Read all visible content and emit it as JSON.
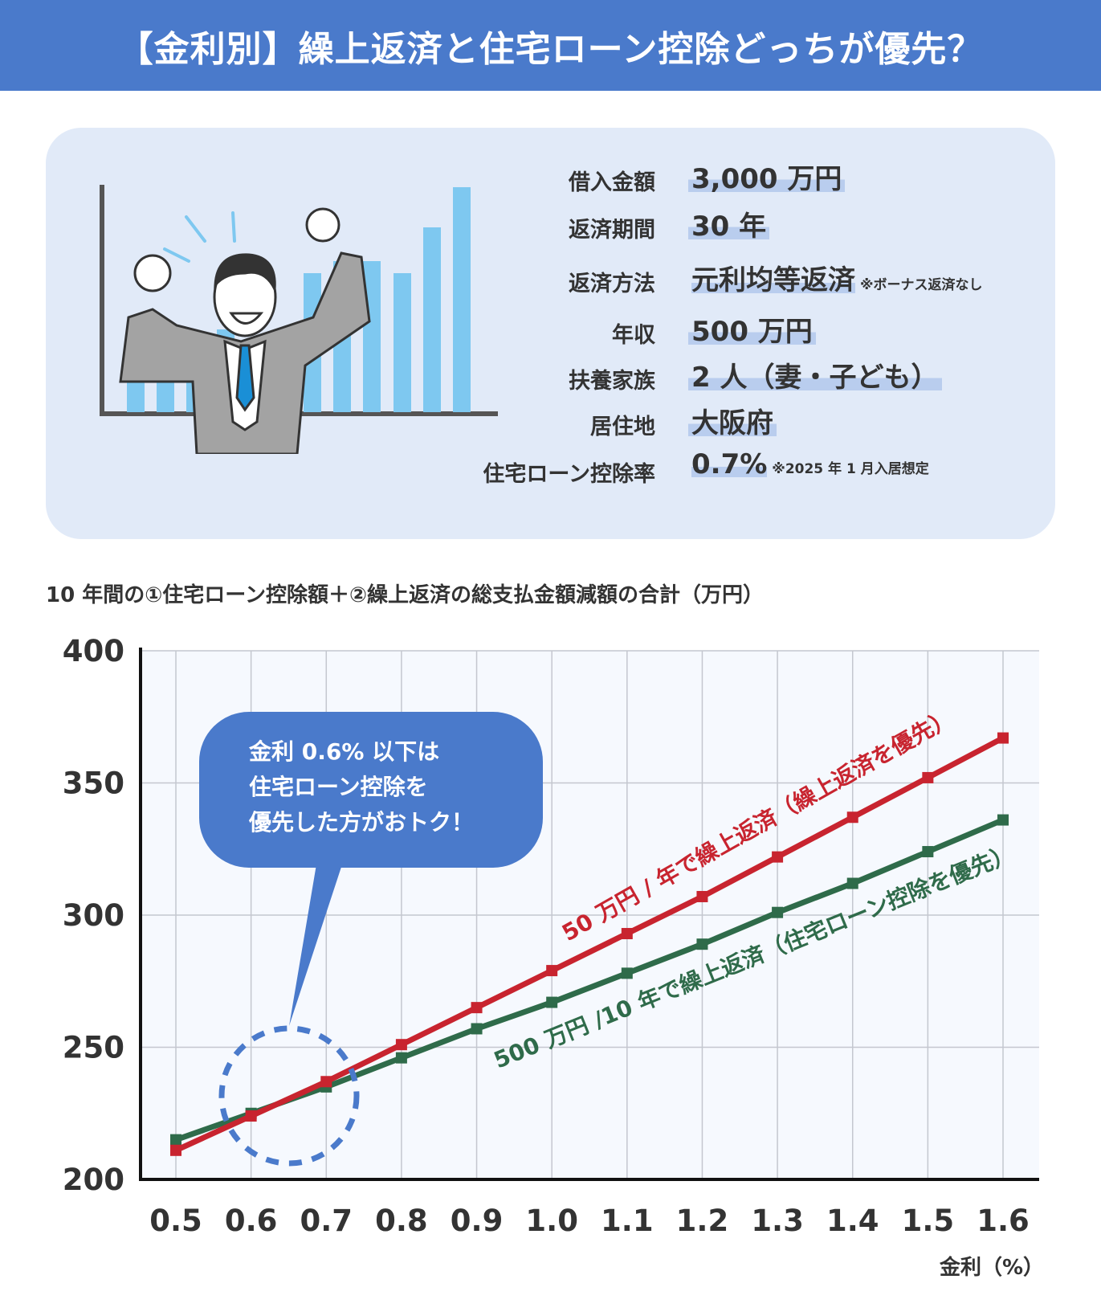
{
  "header": {
    "title": "【金利別】繰上返済と住宅ローン控除どっちが優先？"
  },
  "conditions": [
    {
      "label": "借入金額",
      "value": "3,000 万円",
      "note": ""
    },
    {
      "label": "返済期間",
      "value": "30 年",
      "note": ""
    },
    {
      "label": "返済方法",
      "value": "元利均等返済",
      "note": "※ボーナス返済なし"
    },
    {
      "label": "年収",
      "value": "500 万円",
      "note": ""
    },
    {
      "label": "扶養家族",
      "value": "2 人（妻・子ども）",
      "note": ""
    },
    {
      "label": "居住地",
      "value": "大阪府",
      "note": ""
    },
    {
      "label": "住宅ローン控除率",
      "value": "0.7%",
      "note": "※2025 年 1 月入居想定"
    }
  ],
  "colors": {
    "header": "#4a7acb",
    "card": "#e1eaf8",
    "red_series": "#c8242f",
    "green_series": "#2f6b4a",
    "callout": "#4a7acb",
    "plot_bg": "#f6f9fe"
  },
  "chart_data": {
    "type": "line",
    "title": "10 年間の①住宅ローン控除額＋②繰上返済の総支払金額減額の合計（万円）",
    "xlabel": "金利（%）",
    "ylabel": "",
    "x": [
      "0.5",
      "0.6",
      "0.7",
      "0.8",
      "0.9",
      "1.0",
      "1.1",
      "1.2",
      "1.3",
      "1.4",
      "1.5",
      "1.6"
    ],
    "ylim": [
      200,
      400
    ],
    "yticks": [
      "200",
      "250",
      "300",
      "350",
      "400"
    ],
    "grid": true,
    "series": [
      {
        "name": "50 万円 / 年で繰上返済（繰上返済を優先）",
        "color": "#c8242f",
        "values": [
          211,
          224,
          237,
          251,
          265,
          279,
          293,
          307,
          322,
          337,
          352,
          367
        ]
      },
      {
        "name": "500 万円 /10 年で繰上返済（住宅ローン控除を優先）",
        "color": "#2f6b4a",
        "values": [
          215,
          225,
          235,
          246,
          257,
          267,
          278,
          289,
          301,
          312,
          324,
          336
        ]
      }
    ],
    "annotation": {
      "lines": [
        "金利 0.6% 以下は",
        "住宅ローン控除を",
        "優先した方がおトク！"
      ]
    }
  }
}
